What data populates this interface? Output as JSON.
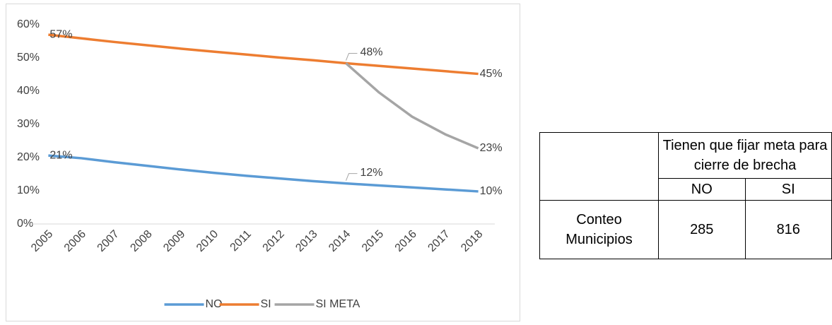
{
  "chart_data": {
    "type": "line",
    "categories": [
      "2005",
      "2006",
      "2007",
      "2008",
      "2009",
      "2010",
      "2011",
      "2012",
      "2013",
      "2014",
      "2015",
      "2016",
      "2017",
      "2018"
    ],
    "series": [
      {
        "name": "NO",
        "color": "#5b9bd5",
        "values": [
          20.6,
          19.8,
          18.6,
          17.5,
          16.4,
          15.4,
          14.5,
          13.7,
          12.9,
          12.2,
          11.6,
          11.0,
          10.4,
          9.8
        ],
        "value_labels": [
          "21%",
          null,
          null,
          null,
          null,
          null,
          null,
          null,
          null,
          "12%",
          null,
          null,
          null,
          "10%"
        ]
      },
      {
        "name": "SI",
        "color": "#ed7d31",
        "values": [
          57,
          55.9,
          54.8,
          53.8,
          52.8,
          51.9,
          51.0,
          50.1,
          49.3,
          48.4,
          47.6,
          46.8,
          46.0,
          45.2
        ],
        "value_labels": [
          "57%",
          null,
          null,
          null,
          null,
          null,
          null,
          null,
          null,
          "48%",
          null,
          null,
          null,
          "45%"
        ]
      },
      {
        "name": "SI META",
        "color": "#a5a5a5",
        "values": [
          null,
          null,
          null,
          null,
          null,
          null,
          null,
          null,
          null,
          48.4,
          39.6,
          32.3,
          27.0,
          22.8
        ],
        "value_labels": [
          null,
          null,
          null,
          null,
          null,
          null,
          null,
          null,
          null,
          null,
          null,
          null,
          null,
          "23%"
        ]
      }
    ],
    "ylim": [
      0,
      60
    ],
    "yticks": [
      {
        "value": 0,
        "label": "0%"
      },
      {
        "value": 10,
        "label": "10%"
      },
      {
        "value": 20,
        "label": "20%"
      },
      {
        "value": 30,
        "label": "30%"
      },
      {
        "value": 40,
        "label": "40%"
      },
      {
        "value": 50,
        "label": "50%"
      },
      {
        "value": 60,
        "label": "60%"
      }
    ],
    "grid": false,
    "legend": "bottom"
  },
  "table": {
    "header": "Tienen que fijar meta para cierre de brecha",
    "columns": [
      "NO",
      "SI"
    ],
    "rows": [
      [
        "Conteo Municipios",
        "285",
        "816"
      ]
    ]
  }
}
